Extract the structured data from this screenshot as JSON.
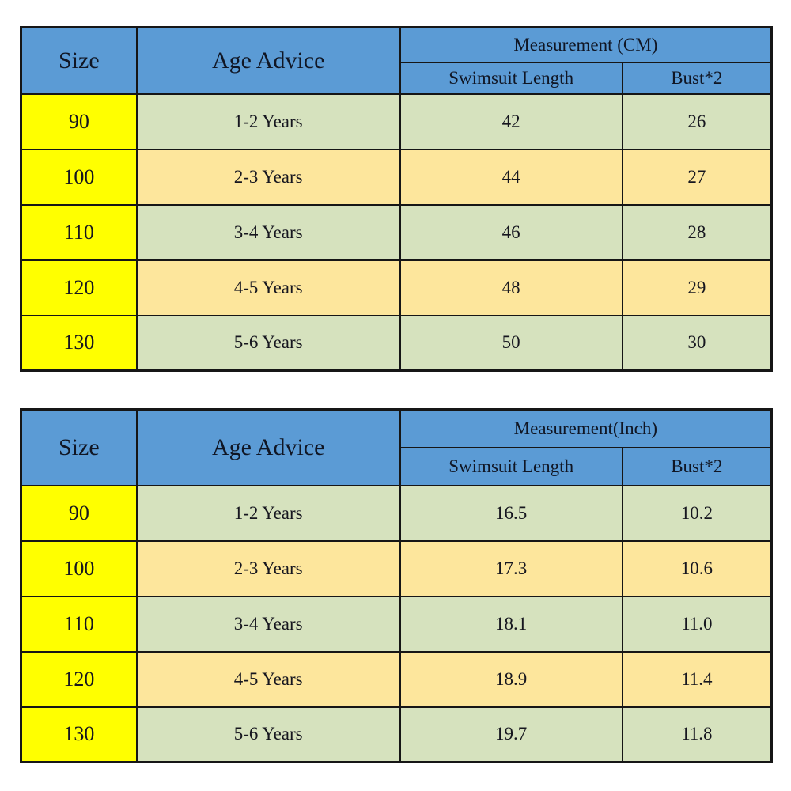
{
  "colors": {
    "header_blue": "#5b9bd5",
    "size_column_yellow": "#ffff00",
    "row_green": "#d6e2be",
    "row_tan": "#fde69c",
    "border_black": "#161616",
    "background_white": "#ffffff"
  },
  "tables": [
    {
      "header": {
        "size": "Size",
        "age": "Age Advice",
        "measurement": "Measurement (CM)",
        "sub1": "Swimsuit Length",
        "sub2": "Bust*2"
      },
      "rows": [
        {
          "size": "90",
          "age": "1-2 Years",
          "length": "42",
          "bust": "26"
        },
        {
          "size": "100",
          "age": "2-3 Years",
          "length": "44",
          "bust": "27"
        },
        {
          "size": "110",
          "age": "3-4 Years",
          "length": "46",
          "bust": "28"
        },
        {
          "size": "120",
          "age": "4-5 Years",
          "length": "48",
          "bust": "29"
        },
        {
          "size": "130",
          "age": "5-6 Years",
          "length": "50",
          "bust": "30"
        }
      ]
    },
    {
      "header": {
        "size": "Size",
        "age": "Age Advice",
        "measurement": "Measurement(Inch)",
        "sub1": "Swimsuit Length",
        "sub2": "Bust*2"
      },
      "rows": [
        {
          "size": "90",
          "age": "1-2 Years",
          "length": "16.5",
          "bust": "10.2"
        },
        {
          "size": "100",
          "age": "2-3 Years",
          "length": "17.3",
          "bust": "10.6"
        },
        {
          "size": "110",
          "age": "3-4 Years",
          "length": "18.1",
          "bust": "11.0"
        },
        {
          "size": "120",
          "age": "4-5 Years",
          "length": "18.9",
          "bust": "11.4"
        },
        {
          "size": "130",
          "age": "5-6 Years",
          "length": "19.7",
          "bust": "11.8"
        }
      ]
    }
  ],
  "chart_data": [
    {
      "type": "table",
      "title": "Measurement (CM)",
      "columns": [
        "Size",
        "Age Advice",
        "Swimsuit Length",
        "Bust*2"
      ],
      "rows": [
        [
          "90",
          "1-2 Years",
          42,
          26
        ],
        [
          "100",
          "2-3 Years",
          44,
          27
        ],
        [
          "110",
          "3-4 Years",
          46,
          28
        ],
        [
          "120",
          "4-5 Years",
          48,
          29
        ],
        [
          "130",
          "5-6 Years",
          50,
          30
        ]
      ]
    },
    {
      "type": "table",
      "title": "Measurement(Inch)",
      "columns": [
        "Size",
        "Age Advice",
        "Swimsuit Length",
        "Bust*2"
      ],
      "rows": [
        [
          "90",
          "1-2 Years",
          16.5,
          10.2
        ],
        [
          "100",
          "2-3 Years",
          17.3,
          10.6
        ],
        [
          "110",
          "3-4 Years",
          18.1,
          11.0
        ],
        [
          "120",
          "4-5 Years",
          18.9,
          11.4
        ],
        [
          "130",
          "5-6 Years",
          19.7,
          11.8
        ]
      ]
    }
  ]
}
